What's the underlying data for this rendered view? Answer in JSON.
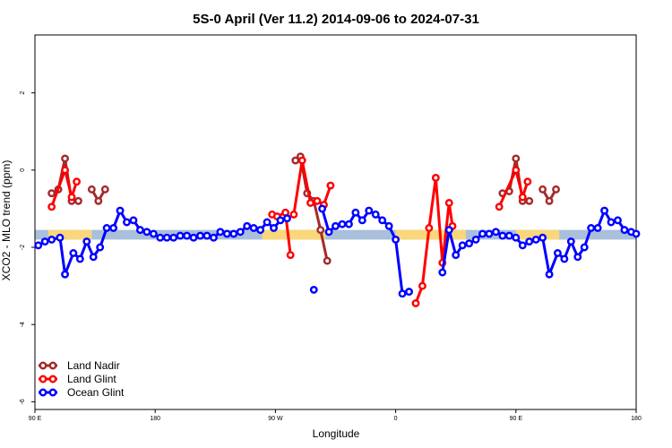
{
  "chart_data": {
    "type": "line",
    "title": "5S-0 April (Ver 11.2)   2014-09-06 to 2024-07-31",
    "xlabel": "Longitude",
    "ylabel": "XCO2 - MLO trend (ppm)",
    "xlim": [
      90,
      450
    ],
    "ylim": [
      -6.2,
      3.5
    ],
    "x_ticks": [
      {
        "value": 90,
        "label": "90 E"
      },
      {
        "value": 162,
        "label": "180"
      },
      {
        "value": 234,
        "label": "90 W"
      },
      {
        "value": 306,
        "label": "0"
      },
      {
        "value": 378,
        "label": "90 E"
      },
      {
        "value": 450,
        "label": "180"
      }
    ],
    "y_ticks": [
      {
        "value": -6,
        "label": "-6"
      },
      {
        "value": -4,
        "label": "-4"
      },
      {
        "value": -2,
        "label": "-2"
      },
      {
        "value": 0,
        "label": "0"
      },
      {
        "value": 2,
        "label": "2"
      }
    ],
    "band": {
      "y_low": -1.8,
      "y_high": -1.55,
      "colors": {
        "ocean": "#a9bfdc",
        "land": "#f9d77a"
      },
      "land_segments": [
        [
          98,
          124
        ],
        [
          226,
          264
        ],
        [
          306,
          348
        ],
        [
          378,
          404
        ]
      ]
    },
    "legend_position": "bottom-left",
    "series": [
      {
        "name": "Land Nadir",
        "color": "#a52a2a",
        "segments": [
          [
            [
              100,
              -0.6
            ],
            [
              104,
              -0.5
            ],
            [
              108,
              0.3
            ],
            [
              112,
              -0.8
            ],
            [
              116,
              -0.8
            ]
          ],
          [
            [
              124,
              -0.5
            ],
            [
              128,
              -0.8
            ],
            [
              132,
              -0.5
            ]
          ],
          [
            [
              246,
              0.25
            ],
            [
              249,
              0.35
            ],
            [
              253,
              -0.6
            ],
            [
              257,
              -0.8
            ],
            [
              261,
              -1.55
            ],
            [
              265,
              -2.35
            ]
          ],
          [
            [
              370,
              -0.6
            ],
            [
              374,
              -0.55
            ],
            [
              378,
              0.3
            ],
            [
              382,
              -0.8
            ],
            [
              386,
              -0.8
            ]
          ],
          [
            [
              394,
              -0.5
            ],
            [
              398,
              -0.8
            ],
            [
              402,
              -0.5
            ]
          ]
        ]
      },
      {
        "name": "Land Glint",
        "color": "#ff0000",
        "segments": [
          [
            [
              100,
              -0.95
            ],
            [
              108,
              0.0
            ],
            [
              112,
              -0.7
            ],
            [
              115,
              -0.3
            ]
          ],
          [
            [
              232,
              -1.15
            ],
            [
              235,
              -1.2
            ],
            [
              240,
              -1.1
            ],
            [
              243,
              -2.2
            ]
          ],
          [
            [
              245,
              -1.15
            ],
            [
              250,
              0.25
            ],
            [
              255,
              -0.85
            ],
            [
              259,
              -0.8
            ],
            [
              263,
              -0.9
            ],
            [
              267,
              -0.4
            ]
          ],
          [
            [
              318,
              -3.45
            ],
            [
              322,
              -3.0
            ],
            [
              326,
              -1.5
            ],
            [
              330,
              -0.2
            ],
            [
              334,
              -2.4
            ],
            [
              338,
              -0.85
            ],
            [
              340,
              -1.45
            ]
          ],
          [
            [
              368,
              -0.95
            ],
            [
              378,
              0.0
            ],
            [
              382,
              -0.7
            ],
            [
              385,
              -0.3
            ]
          ]
        ]
      },
      {
        "name": "Ocean Glint",
        "color": "#0000ff",
        "segments": [
          [
            [
              92,
              -1.95
            ],
            [
              96,
              -1.85
            ],
            [
              100,
              -1.8
            ],
            [
              105,
              -1.75
            ],
            [
              108,
              -2.7
            ],
            [
              113,
              -2.15
            ],
            [
              117,
              -2.3
            ],
            [
              121,
              -1.85
            ],
            [
              125,
              -2.25
            ],
            [
              129,
              -2.0
            ],
            [
              133,
              -1.5
            ],
            [
              137,
              -1.5
            ],
            [
              141,
              -1.05
            ],
            [
              145,
              -1.35
            ],
            [
              149,
              -1.3
            ],
            [
              153,
              -1.55
            ],
            [
              157,
              -1.6
            ],
            [
              161,
              -1.65
            ],
            [
              165,
              -1.75
            ],
            [
              169,
              -1.75
            ],
            [
              173,
              -1.75
            ],
            [
              177,
              -1.7
            ],
            [
              181,
              -1.7
            ],
            [
              185,
              -1.75
            ],
            [
              189,
              -1.7
            ],
            [
              193,
              -1.7
            ],
            [
              197,
              -1.75
            ],
            [
              201,
              -1.6
            ],
            [
              205,
              -1.65
            ],
            [
              209,
              -1.65
            ],
            [
              213,
              -1.6
            ],
            [
              217,
              -1.45
            ],
            [
              221,
              -1.5
            ],
            [
              225,
              -1.55
            ],
            [
              229,
              -1.35
            ],
            [
              233,
              -1.5
            ],
            [
              237,
              -1.3
            ],
            [
              241,
              -1.25
            ]
          ],
          [
            [
              262,
              -1.0
            ],
            [
              266,
              -1.6
            ],
            [
              270,
              -1.45
            ],
            [
              274,
              -1.4
            ],
            [
              278,
              -1.4
            ],
            [
              282,
              -1.1
            ],
            [
              286,
              -1.3
            ],
            [
              290,
              -1.05
            ],
            [
              294,
              -1.15
            ],
            [
              298,
              -1.3
            ],
            [
              302,
              -1.45
            ],
            [
              306,
              -1.8
            ],
            [
              310,
              -3.2
            ],
            [
              314,
              -3.15
            ]
          ],
          [
            [
              334,
              -2.65
            ],
            [
              338,
              -1.55
            ],
            [
              342,
              -2.2
            ],
            [
              346,
              -1.95
            ],
            [
              350,
              -1.9
            ],
            [
              354,
              -1.8
            ],
            [
              358,
              -1.65
            ],
            [
              362,
              -1.65
            ],
            [
              366,
              -1.6
            ],
            [
              370,
              -1.7
            ],
            [
              374,
              -1.7
            ],
            [
              378,
              -1.75
            ],
            [
              382,
              -1.95
            ],
            [
              386,
              -1.85
            ],
            [
              390,
              -1.8
            ],
            [
              394,
              -1.75
            ],
            [
              398,
              -2.7
            ],
            [
              403,
              -2.15
            ],
            [
              407,
              -2.3
            ],
            [
              411,
              -1.85
            ],
            [
              415,
              -2.25
            ],
            [
              419,
              -2.0
            ],
            [
              423,
              -1.5
            ],
            [
              427,
              -1.5
            ],
            [
              431,
              -1.05
            ],
            [
              435,
              -1.35
            ],
            [
              439,
              -1.3
            ],
            [
              443,
              -1.55
            ],
            [
              447,
              -1.6
            ],
            [
              450,
              -1.65
            ]
          ]
        ],
        "singles": [
          [
            257,
            -3.1
          ]
        ]
      }
    ]
  }
}
